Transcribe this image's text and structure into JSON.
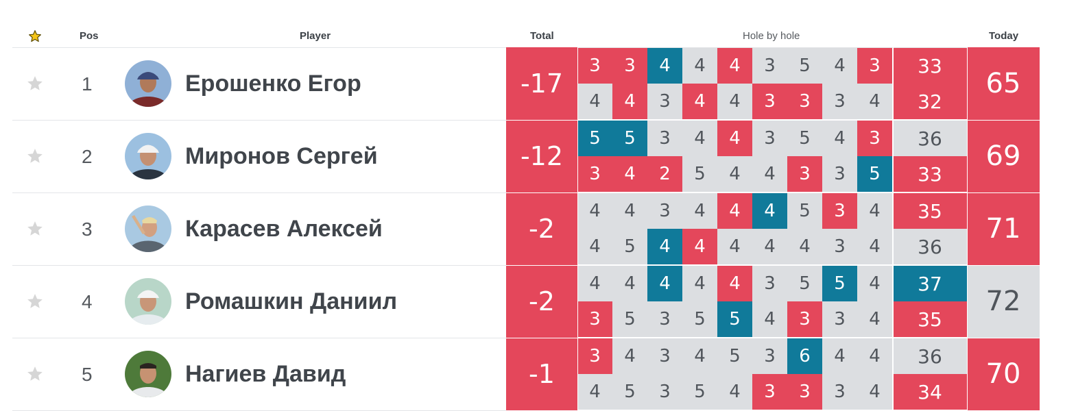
{
  "header": {
    "fav_icon": "star-icon",
    "pos": "Pos",
    "player": "Player",
    "total": "Total",
    "hole_by_hole": "Hole by hole",
    "today": "Today"
  },
  "colors": {
    "under_par": "#e4475b",
    "over_par": "#107a9a",
    "par": "#dcdee1",
    "star_active": "#f5c518",
    "star_inactive": "#d6d6d6"
  },
  "players": [
    {
      "pos": "1",
      "name": "Ерошенко Егор",
      "total": "-17",
      "today": "65",
      "total_status": "under",
      "today_status": "under",
      "rounds": [
        {
          "holes": [
            "3",
            "3",
            "4",
            "4",
            "4",
            "3",
            "5",
            "4",
            "3"
          ],
          "status": [
            "under",
            "under",
            "over",
            "par",
            "under",
            "par",
            "par",
            "par",
            "under"
          ],
          "sum": "33",
          "sum_status": "under"
        },
        {
          "holes": [
            "4",
            "4",
            "3",
            "4",
            "4",
            "3",
            "3",
            "3",
            "4"
          ],
          "status": [
            "par",
            "under",
            "par",
            "under",
            "par",
            "under",
            "under",
            "par",
            "par"
          ],
          "sum": "32",
          "sum_status": "under"
        }
      ]
    },
    {
      "pos": "2",
      "name": "Миронов Сергей",
      "total": "-12",
      "today": "69",
      "total_status": "under",
      "today_status": "under",
      "rounds": [
        {
          "holes": [
            "5",
            "5",
            "3",
            "4",
            "4",
            "3",
            "5",
            "4",
            "3"
          ],
          "status": [
            "over",
            "over",
            "par",
            "par",
            "under",
            "par",
            "par",
            "par",
            "under"
          ],
          "sum": "36",
          "sum_status": "par"
        },
        {
          "holes": [
            "3",
            "4",
            "2",
            "5",
            "4",
            "4",
            "3",
            "3",
            "5"
          ],
          "status": [
            "under",
            "under",
            "under",
            "par",
            "par",
            "par",
            "under",
            "par",
            "over"
          ],
          "sum": "33",
          "sum_status": "under"
        }
      ]
    },
    {
      "pos": "3",
      "name": "Карасев Алексей",
      "total": "-2",
      "today": "71",
      "total_status": "under",
      "today_status": "under",
      "rounds": [
        {
          "holes": [
            "4",
            "4",
            "3",
            "4",
            "4",
            "4",
            "5",
            "3",
            "4"
          ],
          "status": [
            "par",
            "par",
            "par",
            "par",
            "under",
            "over",
            "par",
            "under",
            "par"
          ],
          "sum": "35",
          "sum_status": "under"
        },
        {
          "holes": [
            "4",
            "5",
            "4",
            "4",
            "4",
            "4",
            "4",
            "3",
            "4"
          ],
          "status": [
            "par",
            "par",
            "over",
            "under",
            "par",
            "par",
            "par",
            "par",
            "par"
          ],
          "sum": "36",
          "sum_status": "par"
        }
      ]
    },
    {
      "pos": "4",
      "name": "Ромашкин Даниил",
      "total": "-2",
      "today": "72",
      "total_status": "under",
      "today_status": "par",
      "rounds": [
        {
          "holes": [
            "4",
            "4",
            "4",
            "4",
            "4",
            "3",
            "5",
            "5",
            "4"
          ],
          "status": [
            "par",
            "par",
            "over",
            "par",
            "under",
            "par",
            "par",
            "over",
            "par"
          ],
          "sum": "37",
          "sum_status": "over"
        },
        {
          "holes": [
            "3",
            "5",
            "3",
            "5",
            "5",
            "4",
            "3",
            "3",
            "4"
          ],
          "status": [
            "under",
            "par",
            "par",
            "par",
            "over",
            "par",
            "under",
            "par",
            "par"
          ],
          "sum": "35",
          "sum_status": "under"
        }
      ]
    },
    {
      "pos": "5",
      "name": "Нагиев Давид",
      "total": "-1",
      "today": "70",
      "total_status": "under",
      "today_status": "under",
      "rounds": [
        {
          "holes": [
            "3",
            "4",
            "3",
            "4",
            "5",
            "3",
            "6",
            "4",
            "4"
          ],
          "status": [
            "under",
            "par",
            "par",
            "par",
            "par",
            "par",
            "over",
            "par",
            "par"
          ],
          "sum": "36",
          "sum_status": "par"
        },
        {
          "holes": [
            "4",
            "5",
            "3",
            "5",
            "4",
            "3",
            "3",
            "3",
            "4"
          ],
          "status": [
            "par",
            "par",
            "par",
            "par",
            "par",
            "under",
            "under",
            "par",
            "par"
          ],
          "sum": "34",
          "sum_status": "under"
        }
      ]
    }
  ]
}
